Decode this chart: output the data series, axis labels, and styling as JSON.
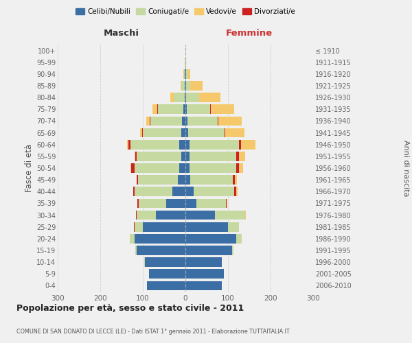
{
  "age_groups": [
    "0-4",
    "5-9",
    "10-14",
    "15-19",
    "20-24",
    "25-29",
    "30-34",
    "35-39",
    "40-44",
    "45-49",
    "50-54",
    "55-59",
    "60-64",
    "65-69",
    "70-74",
    "75-79",
    "80-84",
    "85-89",
    "90-94",
    "95-99",
    "100+"
  ],
  "birth_years": [
    "2006-2010",
    "2001-2005",
    "1996-2000",
    "1991-1995",
    "1986-1990",
    "1981-1985",
    "1976-1980",
    "1971-1975",
    "1966-1970",
    "1961-1965",
    "1956-1960",
    "1951-1955",
    "1946-1950",
    "1941-1945",
    "1936-1940",
    "1931-1935",
    "1926-1930",
    "1921-1925",
    "1916-1920",
    "1911-1915",
    "≤ 1910"
  ],
  "males": {
    "celibi": [
      90,
      85,
      95,
      115,
      120,
      100,
      70,
      45,
      30,
      17,
      15,
      10,
      14,
      10,
      8,
      5,
      2,
      1,
      1,
      0,
      0
    ],
    "coniugati": [
      0,
      0,
      1,
      2,
      10,
      20,
      45,
      65,
      90,
      95,
      105,
      105,
      115,
      90,
      75,
      60,
      25,
      8,
      3,
      1,
      0
    ],
    "vedovi": [
      0,
      0,
      0,
      0,
      0,
      0,
      0,
      0,
      0,
      0,
      1,
      1,
      3,
      5,
      8,
      12,
      8,
      3,
      1,
      0,
      0
    ],
    "divorziati": [
      0,
      0,
      0,
      0,
      0,
      1,
      1,
      3,
      3,
      3,
      8,
      3,
      5,
      1,
      1,
      1,
      0,
      0,
      0,
      0,
      0
    ]
  },
  "females": {
    "nubili": [
      85,
      90,
      85,
      110,
      120,
      100,
      70,
      25,
      20,
      12,
      10,
      10,
      10,
      7,
      5,
      3,
      2,
      1,
      1,
      0,
      0
    ],
    "coniugate": [
      0,
      0,
      1,
      3,
      12,
      25,
      70,
      70,
      95,
      100,
      110,
      110,
      115,
      85,
      70,
      55,
      30,
      10,
      5,
      1,
      0
    ],
    "vedove": [
      0,
      0,
      0,
      0,
      0,
      0,
      1,
      2,
      3,
      5,
      10,
      15,
      35,
      45,
      55,
      55,
      50,
      30,
      5,
      1,
      0
    ],
    "divorziate": [
      0,
      0,
      0,
      0,
      0,
      1,
      1,
      2,
      4,
      4,
      5,
      5,
      5,
      1,
      2,
      2,
      0,
      0,
      0,
      0,
      0
    ]
  },
  "colors": {
    "celibi_nubili": "#3A6EA5",
    "coniugati": "#C5D9A0",
    "vedovi": "#F5C96B",
    "divorziati": "#CC2222"
  },
  "xlim": 300,
  "title": "Popolazione per età, sesso e stato civile - 2011",
  "subtitle": "COMUNE DI SAN DONATO DI LECCE (LE) - Dati ISTAT 1° gennaio 2011 - Elaborazione TUTTAITALIA.IT",
  "ylabel_left": "Fasce di età",
  "ylabel_right": "Anni di nascita",
  "xlabel_left": "Maschi",
  "xlabel_right": "Femmine",
  "bg_color": "#f0f0f0",
  "grid_color": "#cccccc"
}
